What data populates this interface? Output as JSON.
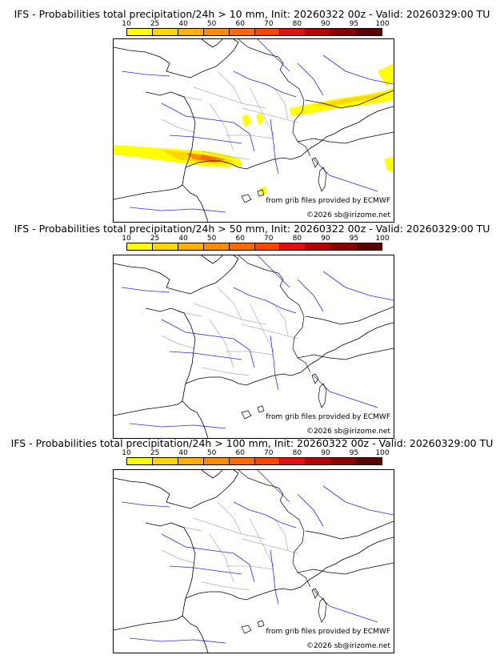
{
  "colorbar": {
    "ticks": [
      "10",
      "25",
      "40",
      "50",
      "60",
      "70",
      "80",
      "90",
      "95",
      "100"
    ],
    "colors": [
      "#ffff00",
      "#ffd700",
      "#ffb000",
      "#ff8c00",
      "#ff6a00",
      "#ff4500",
      "#e01010",
      "#b40000",
      "#8b0000",
      "#5a0000"
    ]
  },
  "panels": [
    {
      "title": "IFS - Probabilities total precipitation/24h > 10 mm, Init: 20260322 00z - Valid: 20260329:00 TU",
      "threshold_mm": 10,
      "has_precip": true,
      "credit_source": "from grib files provided by ECMWF",
      "credit_copyright": "©2026 sb@irizome.net"
    },
    {
      "title": "IFS - Probabilities total precipitation/24h > 50 mm, Init: 20260322 00z - Valid: 20260329:00 TU",
      "threshold_mm": 50,
      "has_precip": false,
      "credit_source": "from grib files provided by ECMWF",
      "credit_copyright": "©2026 sb@irizome.net"
    },
    {
      "title": "IFS - Probabilities total precipitation/24h > 100 mm, Init: 20260322 00z - Valid: 20260329:00 TU",
      "threshold_mm": 100,
      "has_precip": false,
      "credit_source": "from grib files provided by ECMWF",
      "credit_copyright": "©2026 sb@irizome.net"
    }
  ]
}
